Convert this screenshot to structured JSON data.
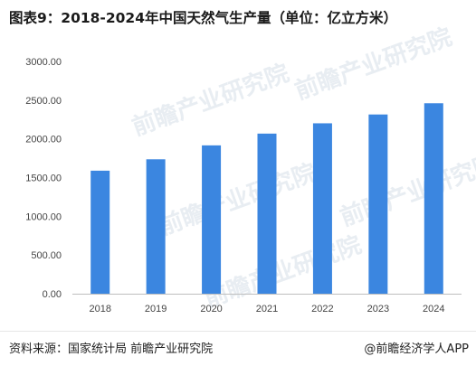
{
  "title": "图表9：2018-2024年中国天然气生产量（单位：亿立方米）",
  "source": "资料来源：国家统计局 前瞻产业研究院",
  "credit": "@前瞻经济学人APP",
  "watermark": "前瞻产业研究院",
  "colors": {
    "bar": "#3b86e0",
    "axis": "#bfbfbf"
  },
  "chart_data": {
    "type": "bar",
    "title": "图表9：2018-2024年中国天然气生产量（单位：亿立方米）",
    "categories": [
      "2018",
      "2019",
      "2020",
      "2021",
      "2022",
      "2023",
      "2024"
    ],
    "values": [
      1589,
      1736,
      1916,
      2068,
      2201,
      2315,
      2460
    ],
    "ylim": [
      0,
      3000
    ],
    "yticks": [
      0,
      500,
      1000,
      1500,
      2000,
      2500,
      3000
    ],
    "ytick_labels": [
      "0.00",
      "500.00",
      "1000.00",
      "1500.00",
      "2000.00",
      "2500.00",
      "3000.00"
    ],
    "grid": false,
    "legend": "none"
  }
}
